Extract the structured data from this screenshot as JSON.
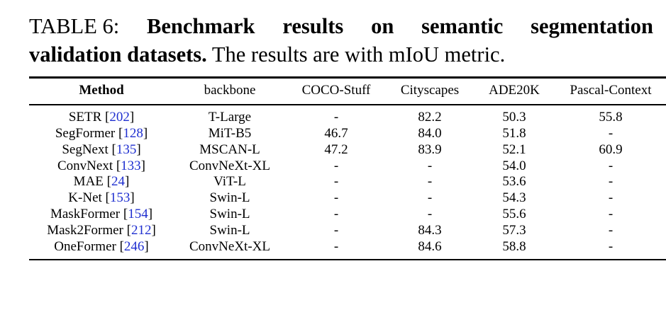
{
  "caption": {
    "line1": {
      "prefix": "TABLE 6:",
      "words": [
        "Benchmark",
        "results",
        "on",
        "semantic",
        "segmentation"
      ]
    },
    "line2": {
      "bold": "validation datasets.",
      "rest": " The results are with mIoU metric."
    }
  },
  "table": {
    "headers": {
      "method": "Method",
      "backbone": "backbone",
      "coco": "COCO-Stuff",
      "cityscapes": "Cityscapes",
      "ade": "ADE20K",
      "pascal": "Pascal-Context"
    },
    "rows": [
      {
        "method": "SETR",
        "ref": "202",
        "backbone": "T-Large",
        "coco": "-",
        "cityscapes": "82.2",
        "ade": "50.3",
        "pascal": "55.8"
      },
      {
        "method": "SegFormer",
        "ref": "128",
        "backbone": "MiT-B5",
        "coco": "46.7",
        "cityscapes": "84.0",
        "ade": "51.8",
        "pascal": "-"
      },
      {
        "method": "SegNext",
        "ref": "135",
        "backbone": "MSCAN-L",
        "coco": "47.2",
        "cityscapes": "83.9",
        "ade": "52.1",
        "pascal": "60.9"
      },
      {
        "method": "ConvNext",
        "ref": "133",
        "backbone": "ConvNeXt-XL",
        "coco": "-",
        "cityscapes": "-",
        "ade": "54.0",
        "pascal": "-"
      },
      {
        "method": "MAE",
        "ref": "24",
        "backbone": "ViT-L",
        "coco": "-",
        "cityscapes": "-",
        "ade": "53.6",
        "pascal": "-"
      },
      {
        "method": "K-Net",
        "ref": "153",
        "backbone": "Swin-L",
        "coco": "-",
        "cityscapes": "-",
        "ade": "54.3",
        "pascal": "-"
      },
      {
        "method": "MaskFormer",
        "ref": "154",
        "backbone": "Swin-L",
        "coco": "-",
        "cityscapes": "-",
        "ade": "55.6",
        "pascal": "-"
      },
      {
        "method": "Mask2Former",
        "ref": "212",
        "backbone": "Swin-L",
        "coco": "-",
        "cityscapes": "84.3",
        "ade": "57.3",
        "pascal": "-"
      },
      {
        "method": "OneFormer",
        "ref": "246",
        "backbone": "ConvNeXt-XL",
        "coco": "-",
        "cityscapes": "84.6",
        "ade": "58.8",
        "pascal": "-"
      }
    ]
  },
  "colors": {
    "text": "#000000",
    "citation_link": "#1f2fd0",
    "background": "#ffffff"
  }
}
